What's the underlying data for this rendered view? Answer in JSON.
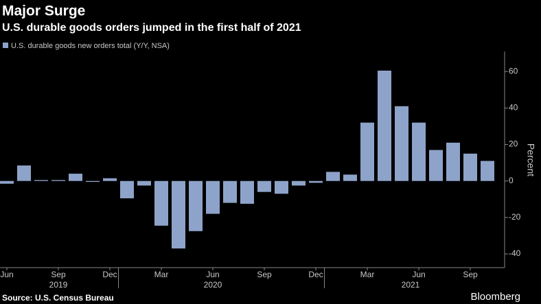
{
  "chart_data": {
    "type": "bar",
    "title": "Major Surge",
    "subtitle": "U.S. durable goods orders jumped in the first half of 2021",
    "y_axis_label": "Percent",
    "source": "Source: U.S. Census Bureau",
    "brand": "Bloomberg",
    "categories": [
      "Jun",
      null,
      null,
      "Sep",
      null,
      null,
      "Dec",
      null,
      null,
      "Mar",
      null,
      null,
      "Jun",
      null,
      null,
      "Sep",
      null,
      null,
      "Dec",
      null,
      null,
      "Mar",
      null,
      null,
      "Jun",
      null,
      null,
      "Sep",
      null
    ],
    "year_labels": [
      "2019",
      "2020",
      "2021"
    ],
    "series": [
      {
        "name": "U.S. durable goods new orders total (Y/Y, NSA)",
        "color": "#8ea3c9",
        "values": [
          -1.5,
          8.5,
          0.5,
          0.5,
          4,
          -0.5,
          1.5,
          -9.5,
          -2.5,
          -24.5,
          -37,
          -27.5,
          -18,
          -12,
          -12.5,
          -6,
          -7,
          -2.5,
          -1,
          5,
          3.5,
          32,
          60.5,
          41,
          32,
          17,
          21,
          15,
          11
        ]
      }
    ],
    "ylim": [
      -47.5,
      71
    ],
    "yticks": [
      -40,
      -20,
      0,
      20,
      40,
      60
    ],
    "grid": false,
    "legend": "top-left"
  }
}
